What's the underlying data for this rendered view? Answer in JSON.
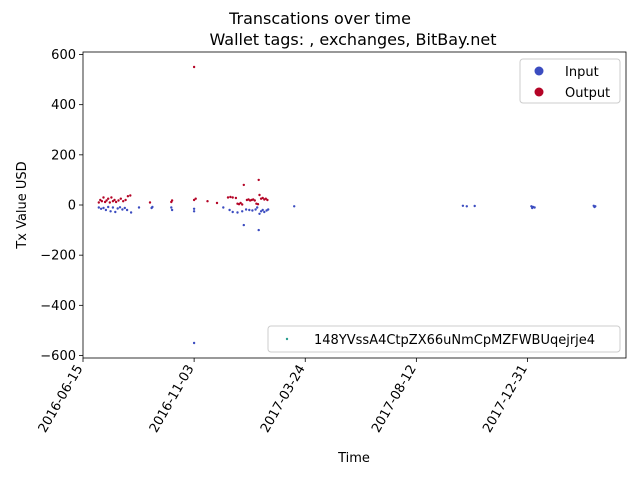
{
  "chart_data": {
    "type": "scatter",
    "title": "Transcations over time",
    "subtitle": "Wallet tags: , exchanges, BitBay.net",
    "xlabel": "Time",
    "ylabel": "Tx Value USD",
    "x_tick_labels": [
      "2016-06-15",
      "2016-11-03",
      "2017-03-24",
      "2017-08-12",
      "2017-12-31"
    ],
    "xlim": [
      "2016-06-15",
      "2018-05-05"
    ],
    "ylim": [
      -610,
      610
    ],
    "y_ticks": [
      -600,
      -400,
      -200,
      0,
      200,
      400,
      600
    ],
    "y_tick_labels": [
      "−600",
      "−400",
      "−200",
      "0",
      "200",
      "400",
      "600"
    ],
    "grid": false,
    "legend_placement": "top-right",
    "series": [
      {
        "name": "Input",
        "color": "#3b4cc0",
        "points": [
          [
            "2016-07-05",
            -10
          ],
          [
            "2016-07-08",
            -15
          ],
          [
            "2016-07-11",
            -12
          ],
          [
            "2016-07-14",
            -20
          ],
          [
            "2016-07-17",
            -8
          ],
          [
            "2016-07-20",
            -25
          ],
          [
            "2016-07-23",
            -10
          ],
          [
            "2016-07-26",
            -28
          ],
          [
            "2016-07-29",
            -14
          ],
          [
            "2016-08-01",
            -9
          ],
          [
            "2016-08-04",
            -18
          ],
          [
            "2016-08-07",
            -12
          ],
          [
            "2016-08-10",
            -20
          ],
          [
            "2016-08-15",
            -30
          ],
          [
            "2016-08-25",
            -10
          ],
          [
            "2016-09-10",
            -12
          ],
          [
            "2016-09-11",
            -8
          ],
          [
            "2016-10-05",
            -10
          ],
          [
            "2016-10-06",
            -20
          ],
          [
            "2016-11-03",
            -550
          ],
          [
            "2016-11-03",
            -15
          ],
          [
            "2016-11-03",
            -25
          ],
          [
            "2016-12-10",
            -10
          ],
          [
            "2016-12-18",
            -20
          ],
          [
            "2016-12-22",
            -28
          ],
          [
            "2016-12-28",
            -30
          ],
          [
            "2017-01-03",
            -25
          ],
          [
            "2017-01-05",
            -80
          ],
          [
            "2017-01-08",
            -18
          ],
          [
            "2017-01-12",
            -20
          ],
          [
            "2017-01-16",
            -22
          ],
          [
            "2017-01-20",
            -18
          ],
          [
            "2017-01-22",
            -10
          ],
          [
            "2017-01-24",
            -100
          ],
          [
            "2017-01-25",
            -35
          ],
          [
            "2017-01-27",
            -25
          ],
          [
            "2017-01-29",
            -20
          ],
          [
            "2017-01-31",
            -28
          ],
          [
            "2017-02-03",
            -22
          ],
          [
            "2017-02-05",
            -18
          ],
          [
            "2017-03-10",
            -5
          ],
          [
            "2017-10-10",
            -3
          ],
          [
            "2017-10-15",
            -5
          ],
          [
            "2017-10-25",
            -4
          ],
          [
            "2018-01-05",
            -5
          ],
          [
            "2018-01-06",
            -12
          ],
          [
            "2018-01-07",
            -8
          ],
          [
            "2018-01-09",
            -10
          ],
          [
            "2018-03-25",
            -3
          ],
          [
            "2018-03-26",
            -8
          ],
          [
            "2018-03-27",
            -5
          ]
        ]
      },
      {
        "name": "Output",
        "color": "#b40426",
        "points": [
          [
            "2016-07-05",
            10
          ],
          [
            "2016-07-07",
            20
          ],
          [
            "2016-07-09",
            15
          ],
          [
            "2016-07-11",
            30
          ],
          [
            "2016-07-13",
            12
          ],
          [
            "2016-07-15",
            18
          ],
          [
            "2016-07-17",
            25
          ],
          [
            "2016-07-19",
            10
          ],
          [
            "2016-07-21",
            30
          ],
          [
            "2016-07-23",
            15
          ],
          [
            "2016-07-25",
            20
          ],
          [
            "2016-07-27",
            12
          ],
          [
            "2016-07-30",
            18
          ],
          [
            "2016-08-02",
            25
          ],
          [
            "2016-08-05",
            15
          ],
          [
            "2016-08-08",
            20
          ],
          [
            "2016-08-11",
            35
          ],
          [
            "2016-08-14",
            38
          ],
          [
            "2016-09-08",
            10
          ],
          [
            "2016-10-05",
            12
          ],
          [
            "2016-10-06",
            18
          ],
          [
            "2016-11-03",
            550
          ],
          [
            "2016-11-03",
            20
          ],
          [
            "2016-11-05",
            25
          ],
          [
            "2016-11-20",
            15
          ],
          [
            "2016-12-02",
            8
          ],
          [
            "2016-12-16",
            30
          ],
          [
            "2016-12-19",
            32
          ],
          [
            "2016-12-22",
            30
          ],
          [
            "2016-12-26",
            28
          ],
          [
            "2016-12-28",
            5
          ],
          [
            "2016-12-30",
            3
          ],
          [
            "2017-01-01",
            8
          ],
          [
            "2017-01-03",
            2
          ],
          [
            "2017-01-05",
            80
          ],
          [
            "2017-01-09",
            20
          ],
          [
            "2017-01-11",
            22
          ],
          [
            "2017-01-13",
            18
          ],
          [
            "2017-01-15",
            20
          ],
          [
            "2017-01-17",
            22
          ],
          [
            "2017-01-19",
            18
          ],
          [
            "2017-01-21",
            5
          ],
          [
            "2017-01-23",
            3
          ],
          [
            "2017-01-24",
            100
          ],
          [
            "2017-01-25",
            40
          ],
          [
            "2017-01-27",
            25
          ],
          [
            "2017-01-29",
            28
          ],
          [
            "2017-01-31",
            22
          ],
          [
            "2017-02-02",
            25
          ],
          [
            "2017-02-04",
            20
          ]
        ]
      }
    ],
    "wallet_legend": {
      "label": "148YVssA4CtpZX66uNmCpMZFWBUqejrje4",
      "color": "#2a9d8f",
      "placement": "lower-right"
    }
  }
}
